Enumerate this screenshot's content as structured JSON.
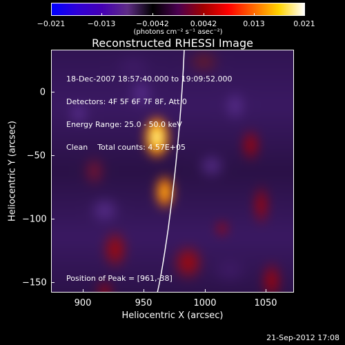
{
  "colorbar": {
    "tick_labels": [
      "−0.021",
      "−0.013",
      "−0.0042",
      "0.0042",
      "0.013",
      "0.021"
    ],
    "units": "(photons cm⁻² s⁻¹ asec⁻²)",
    "gradient_colors": [
      "#0000ff",
      "#2f00d8",
      "#4500b3",
      "#5f2d86",
      "#000000",
      "#4a0050",
      "#a10000",
      "#ff0000",
      "#ff6a00",
      "#ffd400",
      "#ffffff"
    ]
  },
  "title": "Reconstructed RHESSI Image",
  "info": {
    "line1": "18-Dec-2007 18:57:40.000 to 19:09:52.000",
    "line2": "Detectors: 4F 5F 6F 7F 8F, Att 0",
    "line3": "Energy Range: 25.0 - 50.0 keV",
    "line4": "Clean    Total counts: 4.57E+05"
  },
  "peak": "Position of Peak = [961,-38]",
  "axes": {
    "x_label": "Heliocentric X (arcsec)",
    "y_label": "Heliocentric Y (arcsec)",
    "x_ticks": [
      "900",
      "950",
      "1000",
      "1050"
    ],
    "y_ticks": [
      "0",
      "−50",
      "−100",
      "−150"
    ],
    "x_range": [
      878,
      1067
    ],
    "y_range": [
      -165,
      22
    ]
  },
  "footer": "21-Sep-2012 17:08",
  "colors": {
    "background": "#000000",
    "plot_base": "#2b1148",
    "purple_dark": "#3f1b67",
    "purple_mid": "#5a2f8f",
    "red": "#b00000",
    "orange": "#ff7a00",
    "yellow": "#ffe030",
    "white": "#ffffff"
  }
}
